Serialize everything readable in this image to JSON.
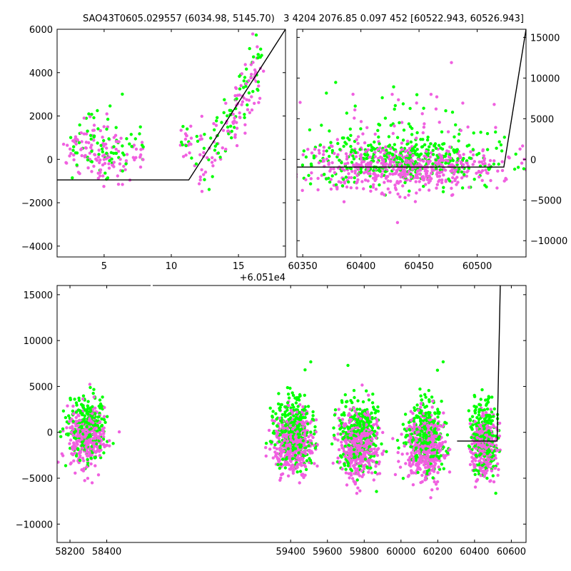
{
  "figure": {
    "title": "SAO43T0605.029557 (6034.98, 5145.70)   3 4204 2076.85 0.097 452 [60522.943, 60526.943]"
  },
  "colors": {
    "green": "#00ff00",
    "pink": "#f060e0",
    "line": "#000000"
  },
  "chart_data": [
    {
      "type": "scatter",
      "panel": "top-left",
      "xlim": [
        1.5,
        18.5
      ],
      "ylim": [
        -4500,
        6000
      ],
      "x_offset_label": "+6.051e4",
      "xticks": [
        5,
        10,
        15
      ],
      "xtick_labels": [
        "5",
        "10",
        "15"
      ],
      "yticks": [
        -4000,
        -2000,
        0,
        2000,
        4000,
        6000
      ],
      "ytick_labels": [
        "−4000",
        "−2000",
        "0",
        "2000",
        "4000",
        "6000"
      ],
      "y_axis_side": "left",
      "point_clusters": [
        {
          "xc": 3.0,
          "xs": 0.45,
          "yc": 300,
          "ys": 600,
          "n": 45
        },
        {
          "xc": 4.2,
          "xs": 0.45,
          "yc": 250,
          "ys": 650,
          "n": 45
        },
        {
          "xc": 5.0,
          "xs": 0.35,
          "yc": 0,
          "ys": 700,
          "n": 40
        },
        {
          "xc": 6.0,
          "xs": 0.45,
          "yc": 300,
          "ys": 600,
          "n": 45
        },
        {
          "xc": 7.4,
          "xs": 0.35,
          "yc": 0,
          "ys": 500,
          "n": 25
        },
        {
          "xc": 11.1,
          "xs": 0.2,
          "yc": 600,
          "ys": 400,
          "n": 22
        },
        {
          "xc": 12.3,
          "xs": 0.3,
          "yc": 0,
          "ys": 900,
          "n": 25
        },
        {
          "xc": 13.4,
          "xs": 0.3,
          "yc": 400,
          "ys": 600,
          "n": 22
        },
        {
          "xc": 14.3,
          "xs": 0.4,
          "yc": 1400,
          "ys": 500,
          "n": 40
        },
        {
          "xc": 15.3,
          "xs": 0.35,
          "yc": 2700,
          "ys": 700,
          "n": 40
        },
        {
          "xc": 16.2,
          "xs": 0.35,
          "yc": 3900,
          "ys": 700,
          "n": 40
        }
      ],
      "series": [
        {
          "name": "",
          "color": "#000000",
          "style": "line",
          "x": [
            1.5,
            11.3,
            18.5
          ],
          "y": [
            -950,
            -950,
            6000
          ]
        }
      ]
    },
    {
      "type": "scatter",
      "panel": "top-right",
      "xlim": [
        60345,
        60542
      ],
      "ylim": [
        -12000,
        16000
      ],
      "xticks": [
        60350,
        60400,
        60450,
        60500
      ],
      "xtick_labels": [
        "60350",
        "60400",
        "60450",
        "60500"
      ],
      "yticks": [
        -10000,
        -5000,
        0,
        5000,
        10000,
        15000
      ],
      "ytick_labels": [
        "−10000",
        "−5000",
        "0",
        "5000",
        "10000",
        "15000"
      ],
      "y_axis_side": "right",
      "point_clusters": [
        {
          "xc": 60435,
          "xs": 42,
          "yc": -1000,
          "ys": 1400,
          "n": 900
        },
        {
          "xc": 60435,
          "xs": 42,
          "yc": 1500,
          "ys": 3500,
          "n": 120
        }
      ],
      "series": [
        {
          "name": "",
          "color": "#000000",
          "style": "line",
          "x": [
            60345,
            60522.9,
            60542
          ],
          "y": [
            -950,
            -950,
            16000
          ]
        }
      ]
    },
    {
      "type": "scatter",
      "panel": "bottom",
      "xlim": [
        58130,
        60680
      ],
      "ylim": [
        -12000,
        16000
      ],
      "xticks": [
        58200,
        58400,
        59400,
        59600,
        59800,
        60000,
        60200,
        60400,
        60600
      ],
      "xtick_labels": [
        "58200",
        "58400",
        "59400",
        "59600",
        "59800",
        "60000",
        "60200",
        "60400",
        "60600"
      ],
      "yticks": [
        -10000,
        -5000,
        0,
        5000,
        10000,
        15000
      ],
      "ytick_labels": [
        "−10000",
        "−5000",
        "0",
        "5000",
        "10000",
        "15000"
      ],
      "y_axis_side": "left",
      "point_clusters": [
        {
          "xc": 58290,
          "xs": 50,
          "yc": -500,
          "ys": 1600,
          "n": 600
        },
        {
          "xc": 59410,
          "xs": 52,
          "yc": -1000,
          "ys": 1700,
          "n": 700
        },
        {
          "xc": 59770,
          "xs": 52,
          "yc": -1300,
          "ys": 1800,
          "n": 700
        },
        {
          "xc": 60130,
          "xs": 52,
          "yc": -1500,
          "ys": 1800,
          "n": 700
        },
        {
          "xc": 60450,
          "xs": 35,
          "yc": -1500,
          "ys": 1800,
          "n": 500
        }
      ],
      "series": [
        {
          "name": "",
          "color": "#000000",
          "style": "line",
          "x": [
            60305,
            60522.9,
            60540
          ],
          "y": [
            -950,
            -950,
            16000
          ]
        }
      ]
    }
  ]
}
